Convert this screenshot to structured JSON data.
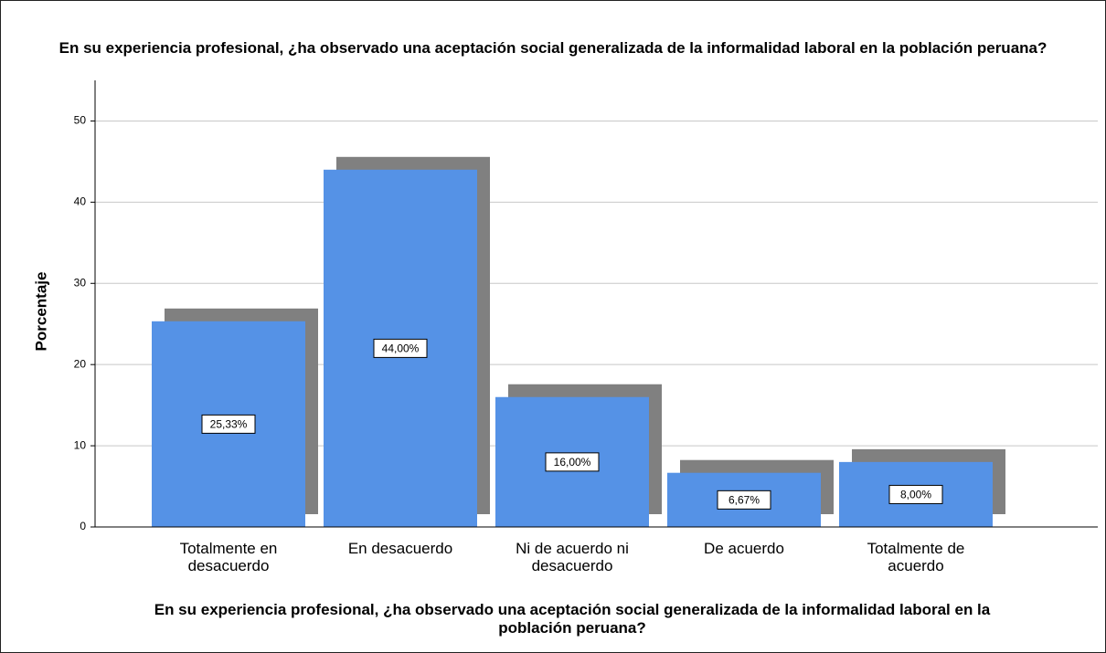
{
  "chart_data": {
    "type": "bar",
    "title": "En su experiencia profesional, ¿ha observado una aceptación social generalizada de la informalidad laboral en la población peruana?",
    "x_label": "En su experiencia profesional, ¿ha observado una aceptación social generalizada de la informalidad laboral en la población peruana?",
    "y_label": "Porcentaje",
    "categories": [
      "Totalmente en desacuerdo",
      "En desacuerdo",
      "Ni de acuerdo ni desacuerdo",
      "De acuerdo",
      "Totalmente de acuerdo"
    ],
    "values": [
      25.33,
      44,
      16,
      6.67,
      8
    ],
    "value_labels": [
      "25,33%",
      "44,00%",
      "16,00%",
      "6,67%",
      "8,00%"
    ],
    "color": "#5592e6",
    "shadow_color": "#808080",
    "ylim": [
      0,
      55
    ],
    "yticks": [
      0,
      10,
      20,
      30,
      40,
      50
    ],
    "grid": true
  }
}
